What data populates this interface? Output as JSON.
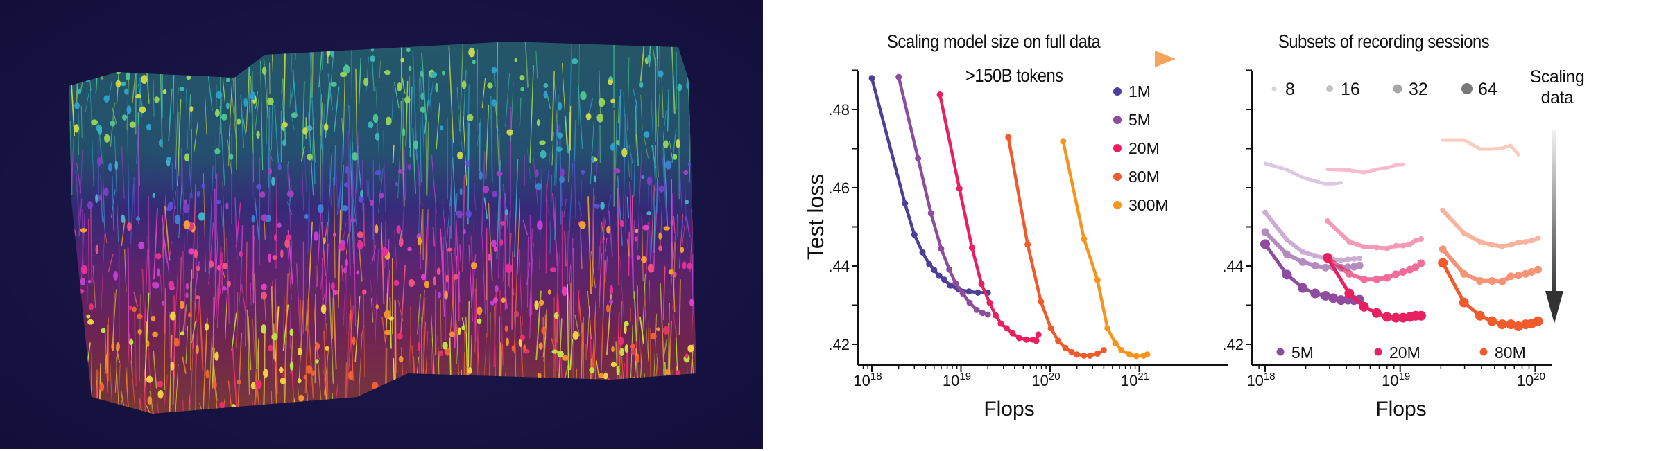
{
  "panel_left": {
    "title": "Scaling model size on full data",
    "subtitle": ">150B tokens",
    "arrow_gradient": [
      "#4b3f9a",
      "#e8205f",
      "#f7a35c"
    ]
  },
  "panel_right": {
    "title": "Subsets of recording sessions",
    "annotation_line1": "Scaling",
    "annotation_line2": "data",
    "annotation_arrow": "down-gradient-arrow"
  },
  "chart_data": [
    {
      "type": "line",
      "title": "Scaling model size on full data",
      "subtitle": ">150B tokens",
      "xlabel": "Flops",
      "ylabel": "Test loss",
      "xscale": "log",
      "xlim": [
        7e+17,
        1e+22
      ],
      "ylim": [
        0.415,
        0.49
      ],
      "grid": false,
      "legend": "top-right",
      "xticks": [
        {
          "base": "10",
          "exp": "18",
          "value": 1e+18
        },
        {
          "base": "10",
          "exp": "19",
          "value": 1e+19
        },
        {
          "base": "10",
          "exp": "20",
          "value": 1e+20
        },
        {
          "base": "10",
          "exp": "21",
          "value": 1e+21
        }
      ],
      "yticks": [
        {
          "label": ".42",
          "value": 0.42
        },
        {
          "label": ".44",
          "value": 0.44
        },
        {
          "label": ".46",
          "value": 0.46
        },
        {
          "label": ".48",
          "value": 0.48
        }
      ],
      "series": [
        {
          "name": "1M",
          "color": "#4b3f9a",
          "points": [
            [
              1e+18,
              0.488
            ],
            [
              2.35e+18,
              0.456
            ],
            [
              3e+18,
              0.448
            ],
            [
              3.7e+18,
              0.4435
            ],
            [
              4.4e+18,
              0.4405
            ],
            [
              5e+18,
              0.439
            ],
            [
              5.7e+18,
              0.4375
            ],
            [
              6.5e+18,
              0.4365
            ],
            [
              7.6e+18,
              0.435
            ],
            [
              9.5e+18,
              0.434
            ],
            [
              1.23e+19,
              0.4335
            ],
            [
              1.55e+19,
              0.4332
            ],
            [
              2e+19,
              0.4332
            ]
          ]
        },
        {
          "name": "5M",
          "color": "#8e4c9e",
          "points": [
            [
              2e+18,
              0.4883
            ],
            [
              3.3e+18,
              0.4675
            ],
            [
              4.6e+18,
              0.4535
            ],
            [
              6e+18,
              0.4444
            ],
            [
              7.4e+18,
              0.4391
            ],
            [
              8.7e+18,
              0.4356
            ],
            [
              1.05e+19,
              0.433
            ],
            [
              1.25e+19,
              0.4306
            ],
            [
              1.5e+19,
              0.4288
            ],
            [
              1.75e+19,
              0.428
            ],
            [
              2e+19,
              0.4276
            ]
          ]
        },
        {
          "name": "20M",
          "color": "#e8205f",
          "points": [
            [
              5.8e+18,
              0.4838
            ],
            [
              9.6e+18,
              0.4598
            ],
            [
              1.33e+19,
              0.4447
            ],
            [
              1.7e+19,
              0.4354
            ],
            [
              2.1e+19,
              0.4306
            ],
            [
              2.45e+19,
              0.4274
            ],
            [
              2.8e+19,
              0.4253
            ],
            [
              3.25e+19,
              0.4241
            ],
            [
              3.8e+19,
              0.4228
            ],
            [
              4.5e+19,
              0.4216
            ],
            [
              5.4e+19,
              0.4212
            ],
            [
              6.4e+19,
              0.4212
            ],
            [
              7e+19,
              0.4209
            ],
            [
              7.4e+19,
              0.4225
            ]
          ]
        },
        {
          "name": "80M",
          "color": "#f15a2b",
          "points": [
            [
              3.4e+19,
              0.4729
            ],
            [
              5.6e+19,
              0.4455
            ],
            [
              7.9e+19,
              0.4309
            ],
            [
              1.02e+20,
              0.4241
            ],
            [
              1.23e+20,
              0.4209
            ],
            [
              1.48e+20,
              0.4191
            ],
            [
              1.74e+20,
              0.418
            ],
            [
              2e+20,
              0.4174
            ],
            [
              2.4e+20,
              0.4171
            ],
            [
              2.8e+20,
              0.4171
            ],
            [
              3.4e+20,
              0.4176
            ],
            [
              4e+20,
              0.4185
            ]
          ]
        },
        {
          "name": "300M",
          "color": "#f7941d",
          "points": [
            [
              1.4e+20,
              0.4719
            ],
            [
              2.4e+20,
              0.4469
            ],
            [
              3.4e+20,
              0.4364
            ],
            [
              4.4e+20,
              0.4241
            ],
            [
              5.4e+20,
              0.4203
            ],
            [
              6.3e+20,
              0.4185
            ],
            [
              7.8e+20,
              0.4174
            ],
            [
              9.3e+20,
              0.417
            ],
            [
              1.12e+21,
              0.4171
            ],
            [
              1.23e+21,
              0.4174
            ]
          ]
        }
      ]
    },
    {
      "type": "line",
      "title": "Subsets of recording sessions",
      "annotation": "Scaling data",
      "xlabel": "Flops",
      "ylabel": "",
      "xscale": "log",
      "xlim": [
        8e+17,
        1.3e+20
      ],
      "ylim": [
        0.415,
        0.49
      ],
      "grid": false,
      "legend": "top (session sizes), bottom (model sizes)",
      "xticks": [
        {
          "base": "10",
          "exp": "18",
          "value": 1e+18
        },
        {
          "base": "10",
          "exp": "19",
          "value": 1e+19
        },
        {
          "base": "10",
          "exp": "20",
          "value": 1e+20
        }
      ],
      "yticks": [
        {
          "label": ".42",
          "value": 0.42
        },
        {
          "label": ".44",
          "value": 0.44
        }
      ],
      "session_legend": [
        {
          "label": "8",
          "sessions": 8
        },
        {
          "label": "16",
          "sessions": 16
        },
        {
          "label": "32",
          "sessions": 32
        },
        {
          "label": "64",
          "sessions": 64
        }
      ],
      "model_legend": [
        {
          "label": "5M",
          "color": "#8e4c9e"
        },
        {
          "label": "20M",
          "color": "#e8205f"
        },
        {
          "label": "80M",
          "color": "#f15a2b"
        }
      ],
      "series": [
        {
          "name": "5M",
          "sessions": 8,
          "color": "#8e4c9e",
          "points": [
            [
              1e+18,
              0.4662
            ],
            [
              1.45e+18,
              0.4646
            ],
            [
              1.9e+18,
              0.4626
            ],
            [
              2.35e+18,
              0.4617
            ],
            [
              2.8e+18,
              0.461
            ],
            [
              3.2e+18,
              0.461
            ],
            [
              3.65e+18,
              0.4613
            ]
          ]
        },
        {
          "name": "5M",
          "sessions": 16,
          "color": "#8e4c9e",
          "points": [
            [
              1e+18,
              0.4537
            ],
            [
              1.45e+18,
              0.4467
            ],
            [
              1.9e+18,
              0.4436
            ],
            [
              2.35e+18,
              0.4426
            ],
            [
              2.8e+18,
              0.442
            ],
            [
              3.2e+18,
              0.4417
            ],
            [
              3.65e+18,
              0.4415
            ],
            [
              4.1e+18,
              0.4417
            ],
            [
              4.55e+18,
              0.4418
            ],
            [
              5e+18,
              0.4419
            ]
          ]
        },
        {
          "name": "5M",
          "sessions": 32,
          "color": "#8e4c9e",
          "points": [
            [
              1e+18,
              0.4487
            ],
            [
              1.45e+18,
              0.443
            ],
            [
              1.9e+18,
              0.441
            ],
            [
              2.35e+18,
              0.4401
            ],
            [
              2.8e+18,
              0.4396
            ],
            [
              3.2e+18,
              0.4397
            ],
            [
              3.65e+18,
              0.4396
            ],
            [
              4.1e+18,
              0.4397
            ],
            [
              4.55e+18,
              0.4398
            ],
            [
              5e+18,
              0.4401
            ]
          ]
        },
        {
          "name": "5M",
          "sessions": 64,
          "color": "#8e4c9e",
          "points": [
            [
              1e+18,
              0.4456
            ],
            [
              1.45e+18,
              0.4378
            ],
            [
              1.9e+18,
              0.4344
            ],
            [
              2.35e+18,
              0.433
            ],
            [
              2.8e+18,
              0.4324
            ],
            [
              3.2e+18,
              0.4318
            ],
            [
              3.65e+18,
              0.4313
            ],
            [
              4.1e+18,
              0.4314
            ],
            [
              4.55e+18,
              0.4313
            ],
            [
              5e+18,
              0.4314
            ]
          ]
        },
        {
          "name": "20M",
          "sessions": 8,
          "color": "#e8205f",
          "points": [
            [
              2.9e+18,
              0.4647
            ],
            [
              4.2e+18,
              0.4645
            ],
            [
              5.4e+18,
              0.4639
            ],
            [
              6.7e+18,
              0.4647
            ],
            [
              8e+18,
              0.4651
            ],
            [
              9.3e+18,
              0.4658
            ],
            [
              1.05e+19,
              0.4659
            ]
          ]
        },
        {
          "name": "20M",
          "sessions": 16,
          "color": "#e8205f",
          "points": [
            [
              2.9e+18,
              0.4515
            ],
            [
              4.2e+18,
              0.4462
            ],
            [
              5.4e+18,
              0.4449
            ],
            [
              6.7e+18,
              0.4447
            ],
            [
              8e+18,
              0.4445
            ],
            [
              9.3e+18,
              0.4452
            ],
            [
              1.05e+19,
              0.4452
            ],
            [
              1.18e+19,
              0.4456
            ],
            [
              1.3e+19,
              0.4465
            ],
            [
              1.43e+19,
              0.4469
            ]
          ]
        },
        {
          "name": "20M",
          "sessions": 32,
          "color": "#e8205f",
          "points": [
            [
              2.9e+18,
              0.4421
            ],
            [
              4.2e+18,
              0.438
            ],
            [
              5.4e+18,
              0.4366
            ],
            [
              6.7e+18,
              0.4366
            ],
            [
              8e+18,
              0.437
            ],
            [
              9.3e+18,
              0.4379
            ],
            [
              1.05e+19,
              0.4385
            ],
            [
              1.18e+19,
              0.4391
            ],
            [
              1.3e+19,
              0.4397
            ],
            [
              1.43e+19,
              0.4407
            ]
          ]
        },
        {
          "name": "20M",
          "sessions": 64,
          "color": "#e8205f",
          "points": [
            [
              2.9e+18,
              0.4421
            ],
            [
              4.2e+18,
              0.433
            ],
            [
              5.4e+18,
              0.4296
            ],
            [
              6.7e+18,
              0.428
            ],
            [
              8e+18,
              0.427
            ],
            [
              9.3e+18,
              0.4268
            ],
            [
              1.05e+19,
              0.4268
            ],
            [
              1.18e+19,
              0.427
            ],
            [
              1.3e+19,
              0.4273
            ],
            [
              1.43e+19,
              0.4273
            ]
          ]
        },
        {
          "name": "80M",
          "sessions": 8,
          "color": "#f15a2b",
          "points": [
            [
              2.07e+19,
              0.4722
            ],
            [
              2.97e+19,
              0.4722
            ],
            [
              3.9e+19,
              0.4699
            ],
            [
              4.8e+19,
              0.4699
            ],
            [
              5.7e+19,
              0.4701
            ],
            [
              6.6e+19,
              0.4708
            ],
            [
              7.5e+19,
              0.4684
            ]
          ]
        },
        {
          "name": "80M",
          "sessions": 16,
          "color": "#f15a2b",
          "points": [
            [
              2.07e+19,
              0.4542
            ],
            [
              2.97e+19,
              0.4484
            ],
            [
              3.9e+19,
              0.4462
            ],
            [
              4.8e+19,
              0.4454
            ],
            [
              5.7e+19,
              0.445
            ],
            [
              6.6e+19,
              0.4454
            ],
            [
              7.5e+19,
              0.446
            ],
            [
              8.5e+19,
              0.4462
            ],
            [
              9.4e+19,
              0.4465
            ],
            [
              1.05e+20,
              0.4471
            ]
          ]
        },
        {
          "name": "80M",
          "sessions": 32,
          "color": "#f15a2b",
          "points": [
            [
              2.07e+19,
              0.4443
            ],
            [
              2.97e+19,
              0.438
            ],
            [
              3.9e+19,
              0.4362
            ],
            [
              4.8e+19,
              0.4362
            ],
            [
              5.7e+19,
              0.436
            ],
            [
              6.6e+19,
              0.4374
            ],
            [
              7.5e+19,
              0.4376
            ],
            [
              8.5e+19,
              0.438
            ],
            [
              9.4e+19,
              0.4385
            ],
            [
              1.05e+20,
              0.4391
            ]
          ]
        },
        {
          "name": "80M",
          "sessions": 64,
          "color": "#f15a2b",
          "points": [
            [
              2.07e+19,
              0.4408
            ],
            [
              2.97e+19,
              0.4307
            ],
            [
              3.9e+19,
              0.4273
            ],
            [
              4.8e+19,
              0.4259
            ],
            [
              5.7e+19,
              0.4251
            ],
            [
              6.6e+19,
              0.4251
            ],
            [
              7.5e+19,
              0.4246
            ],
            [
              8.5e+19,
              0.4251
            ],
            [
              9.4e+19,
              0.4253
            ],
            [
              1.05e+20,
              0.4259
            ]
          ]
        }
      ]
    }
  ]
}
